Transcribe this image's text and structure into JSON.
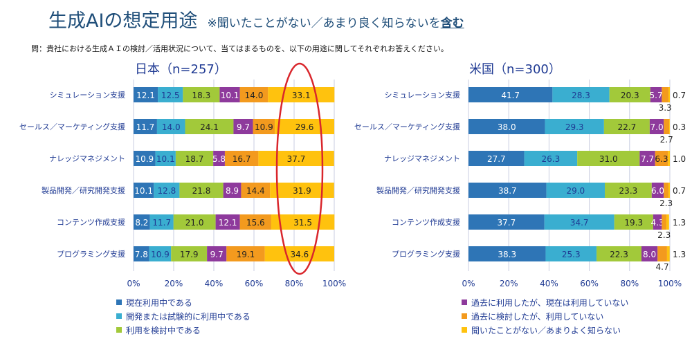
{
  "title": "生成AIの想定用途",
  "subtitle_prefix": "※聞いたことがない／あまり良く知らないを",
  "subtitle_emph": "含む",
  "question": "問：貴社における生成ＡＩの検討／活用状況について、当てはまるものを、以下の用途に関してそれぞれお答えください。",
  "colors": [
    "#2e75b6",
    "#3aaed0",
    "#a2c93a",
    "#8e3a9c",
    "#f39a1e",
    "#ffc20e"
  ],
  "legend": [
    "現在利用中である",
    "開発または試験的に利用中である",
    "利用を検討中である",
    "過去に利用したが、現在は利用していない",
    "過去に検討したが、利用していない",
    "聞いたことがない／あまりよく知らない"
  ],
  "chart_data": [
    {
      "type": "bar",
      "stacked": true,
      "orientation": "horizontal",
      "title": "日本（n=257）",
      "xlim": [
        0,
        100
      ],
      "xticks": [
        "0%",
        "20%",
        "40%",
        "60%",
        "80%",
        "100%"
      ],
      "categories": [
        "シミュレーション支援",
        "セールス／マーケティング支援",
        "ナレッジマネジメント",
        "製品開発／研究開発支援",
        "コンテンツ作成支援",
        "プログラミング支援"
      ],
      "values": [
        [
          12.1,
          12.5,
          18.3,
          10.1,
          14.0,
          33.1
        ],
        [
          11.7,
          14.0,
          24.1,
          9.7,
          10.9,
          29.6
        ],
        [
          10.9,
          10.1,
          18.7,
          5.8,
          16.7,
          37.7
        ],
        [
          10.1,
          12.8,
          21.8,
          8.9,
          14.4,
          31.9
        ],
        [
          8.2,
          11.7,
          21.0,
          12.1,
          15.6,
          31.5
        ],
        [
          7.8,
          10.9,
          17.9,
          9.7,
          19.1,
          34.6
        ]
      ],
      "highlight": "80%"
    },
    {
      "type": "bar",
      "stacked": true,
      "orientation": "horizontal",
      "title": "米国（n=300）",
      "xlim": [
        0,
        100
      ],
      "xticks": [
        "0%",
        "20%",
        "40%",
        "60%",
        "80%",
        "100%"
      ],
      "categories": [
        "シミュレーション支援",
        "セールス／マーケティング支援",
        "ナレッジマネジメント",
        "製品開発／研究開発支援",
        "コンテンツ作成支援",
        "プログラミング支援"
      ],
      "values": [
        [
          41.7,
          28.3,
          20.3,
          5.7,
          3.3,
          0.7
        ],
        [
          38.0,
          29.3,
          22.7,
          7.0,
          2.7,
          0.3
        ],
        [
          27.7,
          26.3,
          31.0,
          7.7,
          6.3,
          1.0
        ],
        [
          38.7,
          29.0,
          23.3,
          6.0,
          2.3,
          0.7
        ],
        [
          37.7,
          34.7,
          19.3,
          4.3,
          2.3,
          1.3
        ],
        [
          38.3,
          25.3,
          22.3,
          8.0,
          4.7,
          1.3
        ]
      ]
    }
  ]
}
